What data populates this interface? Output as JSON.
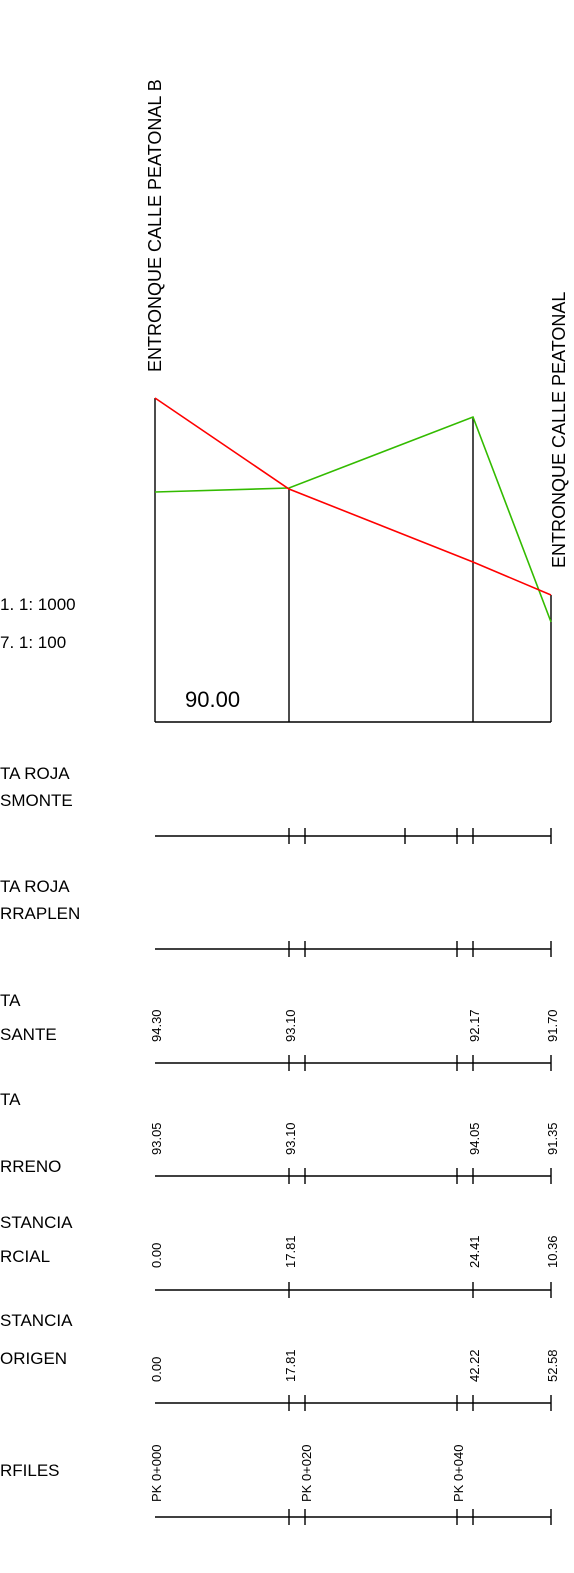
{
  "title_top": "ENTRONQUE CALLE PEATONAL B",
  "title_right": "ENTRONQUE CALLE PEATONAL",
  "scale_h": "1. 1: 1000",
  "scale_v": "7. 1: 100",
  "datum": "90.00",
  "rows": {
    "cota_roja_desmonte": [
      "TA ROJA",
      "SMONTE"
    ],
    "cota_roja_terraplen": [
      "TA ROJA",
      "RRAPLEN"
    ],
    "cota_rasante": [
      "TA",
      "SANTE"
    ],
    "cota_terreno": [
      "TA",
      "RRENO"
    ],
    "dist_parcial": [
      "STANCIA",
      "RCIAL"
    ],
    "dist_origen": [
      "STANCIA",
      "ORIGEN"
    ],
    "perfiles": "RFILES"
  },
  "rasante": [
    "94.30",
    "93.10",
    "92.17",
    "91.70"
  ],
  "terreno": [
    "93.05",
    "93.10",
    "94.05",
    "91.35"
  ],
  "parcial": [
    "0.00",
    "17.81",
    "24.41",
    "10.36"
  ],
  "origen": [
    "0.00",
    "17.81",
    "42.22",
    "52.58"
  ],
  "pks": [
    "PK 0+000",
    "PK 0+020",
    "PK 0+040"
  ],
  "colors": {
    "rasante": "#ff0000",
    "terreno": "#33bb00"
  }
}
